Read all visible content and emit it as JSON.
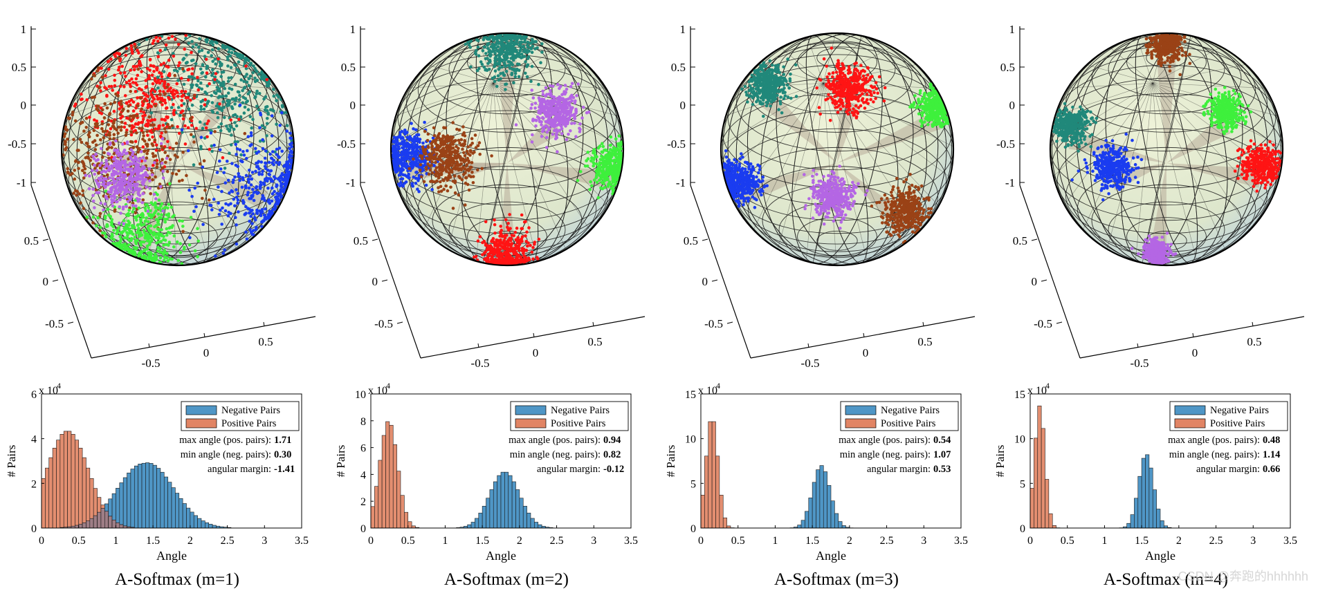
{
  "figure": {
    "watermark": "CSDN @奔跑的hhhhhh"
  },
  "colors": {
    "negative_bar": "#4f96c6",
    "positive_bar": "#e18464",
    "overlap_bar": "#9e7e86",
    "cluster_red": "#ff1414",
    "cluster_brown": "#9a4216",
    "cluster_teal": "#20887a",
    "cluster_blue": "#1a3cf0",
    "cluster_green": "#3ef03c",
    "cluster_purple": "#b466e4",
    "sphere_fill": "#dde8c8",
    "sphere_spoke": "#b8ab99"
  },
  "chart_data": [
    {
      "type": "bar",
      "caption": "A-Softmax (m=1)",
      "xlabel": "Angle",
      "ylabel": "# Pairs",
      "y_exponent": "x 10",
      "y_exponent_power": "4",
      "xlim": [
        0,
        3.5
      ],
      "ylim": [
        0,
        6
      ],
      "xticks": [
        "0",
        "0.5",
        "1",
        "1.5",
        "2",
        "2.5",
        "3",
        "3.5"
      ],
      "yticks": [
        "0",
        "2",
        "4",
        "6"
      ],
      "legend": [
        "Negative Pairs",
        "Positive Pairs"
      ],
      "annotations": [
        {
          "label": "max angle (pos. pairs):",
          "value": "1.71"
        },
        {
          "label": "min angle (neg. pairs):",
          "value": "0.30"
        },
        {
          "label": "angular margin:",
          "value": "-1.41"
        }
      ],
      "series": [
        {
          "name": "Positive Pairs",
          "peak_angle": 0.35,
          "peak_count": 4.35,
          "spread": 0.28,
          "min": 0.0,
          "max": 1.71
        },
        {
          "name": "Negative Pairs",
          "peak_angle": 1.38,
          "peak_count": 2.9,
          "spread": 0.36,
          "min": 0.3,
          "max": 3.1
        }
      ],
      "sphere": {
        "axis_ticks_z": [
          "1",
          "0.5",
          "0",
          "-0.5",
          "-1"
        ],
        "axis_ticks_y": [
          "0.5",
          "0",
          "-0.5"
        ],
        "axis_ticks_x": [
          "-0.5",
          "0",
          "0.5"
        ],
        "clusters": [
          {
            "color": "cluster_teal",
            "angle": -55,
            "dist": 0.72,
            "size": 0.34,
            "spread": 0.7
          },
          {
            "color": "cluster_red",
            "angle": -115,
            "dist": 0.6,
            "size": 0.32,
            "spread": 0.7
          },
          {
            "color": "cluster_brown",
            "angle": 180,
            "dist": 0.52,
            "size": 0.38,
            "spread": 0.75
          },
          {
            "color": "cluster_blue",
            "angle": 25,
            "dist": 0.82,
            "size": 0.3,
            "spread": 0.6
          },
          {
            "color": "cluster_green",
            "angle": 112,
            "dist": 0.85,
            "size": 0.28,
            "spread": 0.45
          },
          {
            "color": "cluster_purple",
            "angle": 150,
            "dist": 0.55,
            "size": 0.2,
            "spread": 0.4
          }
        ]
      }
    },
    {
      "type": "bar",
      "caption": "A-Softmax (m=2)",
      "xlabel": "Angle",
      "ylabel": "# Pairs",
      "y_exponent": "x 10",
      "y_exponent_power": "4",
      "xlim": [
        0,
        3.5
      ],
      "ylim": [
        0,
        10
      ],
      "xticks": [
        "0",
        "0.5",
        "1",
        "1.5",
        "2",
        "2.5",
        "3",
        "3.5"
      ],
      "yticks": [
        "0",
        "2",
        "4",
        "6",
        "8",
        "10"
      ],
      "legend": [
        "Negative Pairs",
        "Positive Pairs"
      ],
      "annotations": [
        {
          "label": "max angle (pos. pairs):",
          "value": "0.94"
        },
        {
          "label": "min angle (neg. pairs):",
          "value": "0.82"
        },
        {
          "label": "angular margin:",
          "value": "-0.12"
        }
      ],
      "series": [
        {
          "name": "Positive Pairs",
          "peak_angle": 0.24,
          "peak_count": 8.0,
          "spread": 0.12,
          "min": 0.0,
          "max": 0.94
        },
        {
          "name": "Negative Pairs",
          "peak_angle": 1.8,
          "peak_count": 4.2,
          "spread": 0.2,
          "min": 0.82,
          "max": 3.1
        }
      ],
      "sphere": {
        "axis_ticks_z": [
          "1",
          "0.5",
          "0",
          "-0.5",
          "-1"
        ],
        "axis_ticks_y": [
          "0.5",
          "0",
          "-0.5"
        ],
        "axis_ticks_x": [
          "-0.5",
          "0",
          "0.5"
        ],
        "clusters": [
          {
            "color": "cluster_teal",
            "angle": -90,
            "dist": 0.96,
            "size": 0.2,
            "spread": 0.3
          },
          {
            "color": "cluster_purple",
            "angle": -40,
            "dist": 0.55,
            "size": 0.16,
            "spread": 0.35
          },
          {
            "color": "cluster_blue",
            "angle": 175,
            "dist": 0.85,
            "size": 0.18,
            "spread": 0.3
          },
          {
            "color": "cluster_brown",
            "angle": 170,
            "dist": 0.52,
            "size": 0.2,
            "spread": 0.35
          },
          {
            "color": "cluster_green",
            "angle": 10,
            "dist": 0.93,
            "size": 0.16,
            "spread": 0.3
          },
          {
            "color": "cluster_red",
            "angle": 90,
            "dist": 0.97,
            "size": 0.18,
            "spread": 0.25
          }
        ]
      }
    },
    {
      "type": "bar",
      "caption": "A-Softmax (m=3)",
      "xlabel": "Angle",
      "ylabel": "# Pairs",
      "y_exponent": "x 10",
      "y_exponent_power": "4",
      "xlim": [
        0,
        3.5
      ],
      "ylim": [
        0,
        15
      ],
      "xticks": [
        "0",
        "0.5",
        "1",
        "1.5",
        "2",
        "2.5",
        "3",
        "3.5"
      ],
      "yticks": [
        "0",
        "5",
        "10",
        "15"
      ],
      "legend": [
        "Negative Pairs",
        "Positive Pairs"
      ],
      "annotations": [
        {
          "label": "max angle (pos. pairs):",
          "value": "0.54"
        },
        {
          "label": "min angle (neg. pairs):",
          "value": "1.07"
        },
        {
          "label": "angular margin:",
          "value": "0.53"
        }
      ],
      "series": [
        {
          "name": "Positive Pairs",
          "peak_angle": 0.15,
          "peak_count": 12.5,
          "spread": 0.08,
          "min": 0.0,
          "max": 0.54
        },
        {
          "name": "Negative Pairs",
          "peak_angle": 1.62,
          "peak_count": 7.0,
          "spread": 0.12,
          "min": 1.07,
          "max": 3.1
        }
      ],
      "sphere": {
        "axis_ticks_z": [
          "1",
          "0.5",
          "0",
          "-0.5",
          "-1"
        ],
        "axis_ticks_y": [
          "0.5",
          "0",
          "-0.5"
        ],
        "axis_ticks_x": [
          "-0.5",
          "0",
          "0.5"
        ],
        "clusters": [
          {
            "color": "cluster_red",
            "angle": -80,
            "dist": 0.58,
            "size": 0.16,
            "spread": 0.3
          },
          {
            "color": "cluster_teal",
            "angle": -135,
            "dist": 0.85,
            "size": 0.14,
            "spread": 0.3
          },
          {
            "color": "cluster_green",
            "angle": -25,
            "dist": 0.95,
            "size": 0.13,
            "spread": 0.3
          },
          {
            "color": "cluster_blue",
            "angle": 160,
            "dist": 0.9,
            "size": 0.15,
            "spread": 0.3
          },
          {
            "color": "cluster_purple",
            "angle": 95,
            "dist": 0.45,
            "size": 0.14,
            "spread": 0.3
          },
          {
            "color": "cluster_brown",
            "angle": 45,
            "dist": 0.82,
            "size": 0.15,
            "spread": 0.3
          }
        ]
      }
    },
    {
      "type": "bar",
      "caption": "A-Softmax (m=4)",
      "xlabel": "Angle",
      "ylabel": "# Pairs",
      "y_exponent": "x 10",
      "y_exponent_power": "4",
      "xlim": [
        0,
        3.5
      ],
      "ylim": [
        0,
        15
      ],
      "xticks": [
        "0",
        "0.5",
        "1",
        "1.5",
        "2",
        "2.5",
        "3",
        "3.5"
      ],
      "yticks": [
        "0",
        "5",
        "10",
        "15"
      ],
      "legend": [
        "Negative Pairs",
        "Positive Pairs"
      ],
      "annotations": [
        {
          "label": "max angle (pos. pairs):",
          "value": "0.48"
        },
        {
          "label": "min angle (neg. pairs):",
          "value": "1.14"
        },
        {
          "label": "angular margin:",
          "value": "0.66"
        }
      ],
      "series": [
        {
          "name": "Positive Pairs",
          "peak_angle": 0.13,
          "peak_count": 13.7,
          "spread": 0.07,
          "min": 0.0,
          "max": 0.48
        },
        {
          "name": "Negative Pairs",
          "peak_angle": 1.56,
          "peak_count": 8.3,
          "spread": 0.1,
          "min": 1.14,
          "max": 3.1
        }
      ],
      "sphere": {
        "axis_ticks_z": [
          "1",
          "0.5",
          "0",
          "-0.5",
          "-1"
        ],
        "axis_ticks_y": [
          "0.5",
          "0",
          "-0.5"
        ],
        "axis_ticks_x": [
          "-0.5",
          "0",
          "0.5"
        ],
        "clusters": [
          {
            "color": "cluster_brown",
            "angle": -90,
            "dist": 0.97,
            "size": 0.12,
            "spread": 0.25
          },
          {
            "color": "cluster_green",
            "angle": -35,
            "dist": 0.62,
            "size": 0.12,
            "spread": 0.3
          },
          {
            "color": "cluster_teal",
            "angle": -165,
            "dist": 0.85,
            "size": 0.12,
            "spread": 0.3
          },
          {
            "color": "cluster_blue",
            "angle": 160,
            "dist": 0.5,
            "size": 0.14,
            "spread": 0.3
          },
          {
            "color": "cluster_red",
            "angle": 10,
            "dist": 0.82,
            "size": 0.13,
            "spread": 0.3
          },
          {
            "color": "cluster_purple",
            "angle": 95,
            "dist": 0.97,
            "size": 0.08,
            "spread": 0.25
          }
        ]
      }
    }
  ]
}
